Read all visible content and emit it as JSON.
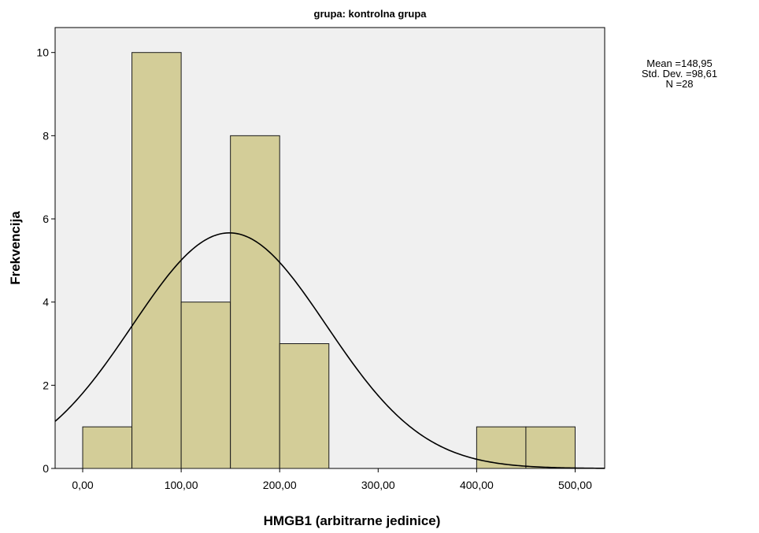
{
  "chart_data": {
    "type": "bar",
    "title": "grupa: kontrolna grupa",
    "xlabel": "HMGB1 (arbitrarne jedinice)",
    "ylabel": "Frekvencija",
    "xlim": [
      -28,
      530
    ],
    "ylim": [
      0,
      10.6
    ],
    "x_ticks": [
      {
        "value": 0,
        "label": "0,00"
      },
      {
        "value": 100,
        "label": "100,00"
      },
      {
        "value": 200,
        "label": "200,00"
      },
      {
        "value": 300,
        "label": "300,00"
      },
      {
        "value": 400,
        "label": "400,00"
      },
      {
        "value": 500,
        "label": "500,00"
      }
    ],
    "y_ticks": [
      {
        "value": 0,
        "label": "0"
      },
      {
        "value": 2,
        "label": "2"
      },
      {
        "value": 4,
        "label": "4"
      },
      {
        "value": 6,
        "label": "6"
      },
      {
        "value": 8,
        "label": "8"
      },
      {
        "value": 10,
        "label": "10"
      }
    ],
    "bin_width": 50,
    "bins": [
      {
        "start": 0,
        "end": 50,
        "count": 1
      },
      {
        "start": 50,
        "end": 100,
        "count": 10
      },
      {
        "start": 100,
        "end": 150,
        "count": 4
      },
      {
        "start": 150,
        "end": 200,
        "count": 8
      },
      {
        "start": 200,
        "end": 250,
        "count": 3
      },
      {
        "start": 250,
        "end": 300,
        "count": 0
      },
      {
        "start": 300,
        "end": 350,
        "count": 0
      },
      {
        "start": 350,
        "end": 400,
        "count": 0
      },
      {
        "start": 400,
        "end": 450,
        "count": 1
      },
      {
        "start": 450,
        "end": 500,
        "count": 1
      }
    ],
    "normal_curve": {
      "mean": 148.95,
      "std_dev": 98.61,
      "n": 28
    },
    "grid": false,
    "legend": "none",
    "colors": {
      "bar_fill": "#d3cd98",
      "bar_stroke": "#1a1a1a",
      "plot_background": "#f0f0f0",
      "curve": "#000000"
    }
  },
  "stats": {
    "mean": "Mean =148,95",
    "std_dev": "Std. Dev. =98,61",
    "n": "N =28"
  }
}
